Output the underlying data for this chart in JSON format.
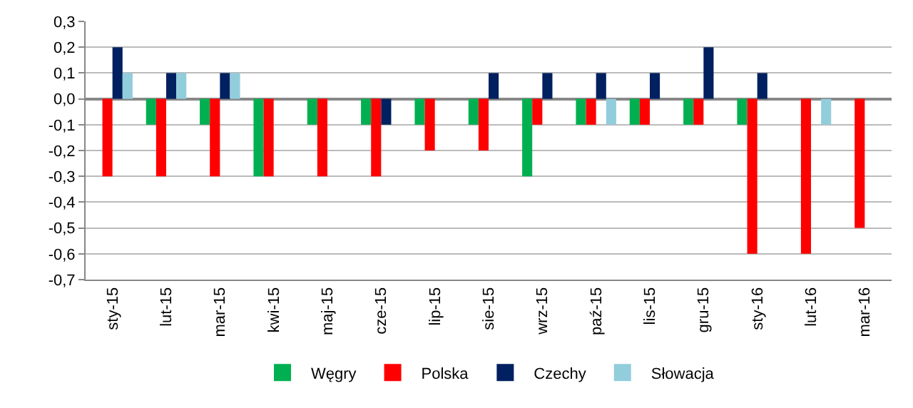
{
  "chart_data": {
    "type": "bar",
    "categories": [
      "sty-15",
      "lut-15",
      "mar-15",
      "kwi-15",
      "maj-15",
      "cze-15",
      "lip-15",
      "sie-15",
      "wrz-15",
      "paź-15",
      "lis-15",
      "gru-15",
      "sty-16",
      "lut-16",
      "mar-16"
    ],
    "series": [
      {
        "name": "Węgry",
        "color": "#00b050",
        "values": [
          0,
          -0.1,
          -0.1,
          -0.3,
          -0.1,
          -0.1,
          -0.1,
          -0.1,
          -0.3,
          -0.1,
          -0.1,
          -0.1,
          -0.1,
          0,
          0
        ]
      },
      {
        "name": "Polska",
        "color": "#ff0000",
        "values": [
          -0.3,
          -0.3,
          -0.3,
          -0.3,
          -0.3,
          -0.3,
          -0.2,
          -0.2,
          -0.1,
          -0.1,
          -0.1,
          -0.1,
          -0.6,
          -0.6,
          -0.5
        ]
      },
      {
        "name": "Czechy",
        "color": "#002060",
        "values": [
          0.2,
          0.1,
          0.1,
          0,
          0,
          -0.1,
          0,
          0.1,
          0.1,
          0.1,
          0.1,
          0.2,
          0.1,
          0,
          0
        ]
      },
      {
        "name": "Słowacja",
        "color": "#92cddc",
        "values": [
          0.1,
          0.1,
          0.1,
          0,
          0,
          0,
          0,
          0,
          0,
          -0.1,
          0,
          0,
          0,
          -0.1,
          0
        ]
      }
    ],
    "ylim": [
      -0.7,
      0.3
    ],
    "yticks": [
      {
        "value": -0.7,
        "label": "-0,7"
      },
      {
        "value": -0.6,
        "label": "-0,6"
      },
      {
        "value": -0.5,
        "label": "-0,5"
      },
      {
        "value": -0.4,
        "label": "-0,4"
      },
      {
        "value": -0.3,
        "label": "-0,3"
      },
      {
        "value": -0.2,
        "label": "-0,2"
      },
      {
        "value": -0.1,
        "label": "-0,1"
      },
      {
        "value": 0,
        "label": "0,0"
      },
      {
        "value": 0.1,
        "label": "0,1"
      },
      {
        "value": 0.2,
        "label": "0,2"
      },
      {
        "value": 0.3,
        "label": "0,3"
      }
    ],
    "grid": "y",
    "legend": "bottom"
  }
}
